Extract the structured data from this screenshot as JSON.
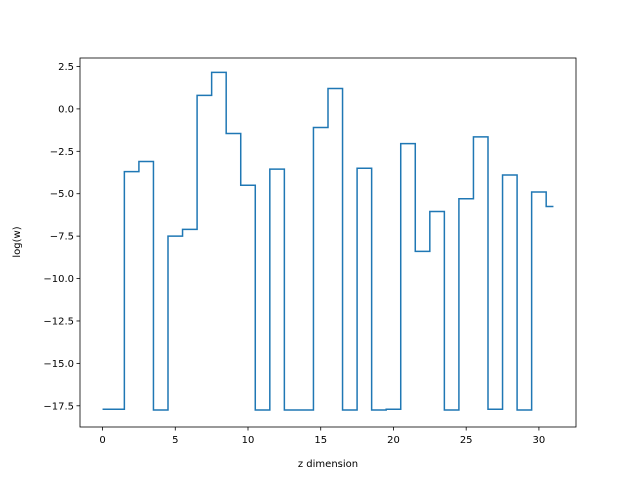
{
  "chart_data": {
    "type": "line",
    "drawstyle": "steps-mid",
    "title": "",
    "xlabel": "z dimension",
    "ylabel": "log(w)",
    "xlim": [
      -1.55,
      32.55
    ],
    "ylim": [
      -18.75,
      3.0
    ],
    "xticks": [
      0,
      5,
      10,
      15,
      20,
      25,
      30
    ],
    "xtick_labels": [
      "0",
      "5",
      "10",
      "15",
      "20",
      "25",
      "30"
    ],
    "yticks": [
      2.5,
      0.0,
      -2.5,
      -5.0,
      -7.5,
      -10.0,
      -12.5,
      -15.0,
      -17.5
    ],
    "ytick_labels": [
      "2.5",
      "0.0",
      "−2.5",
      "−5.0",
      "−7.5",
      "−10.0",
      "−12.5",
      "−15.0",
      "−17.5"
    ],
    "grid": false,
    "line_color": "#1f77b4",
    "series": [
      {
        "x": [
          0,
          1,
          2,
          3,
          4,
          5,
          6,
          7,
          8,
          9,
          10,
          11,
          12,
          13,
          14,
          15,
          16,
          17,
          18,
          19,
          20,
          21,
          22,
          23,
          24,
          25,
          26,
          27,
          28,
          29,
          30,
          31
        ],
        "values": [
          -17.7,
          -17.7,
          -3.7,
          -3.1,
          -17.75,
          -7.5,
          -7.1,
          0.8,
          2.15,
          -1.45,
          -4.5,
          -17.75,
          -3.55,
          -17.75,
          -17.75,
          -1.1,
          1.2,
          -17.75,
          -3.5,
          -17.75,
          -17.7,
          -2.05,
          -8.4,
          -6.05,
          -17.75,
          -5.3,
          -1.65,
          -17.7,
          -3.9,
          -17.75,
          -4.9,
          -5.75
        ]
      }
    ]
  }
}
